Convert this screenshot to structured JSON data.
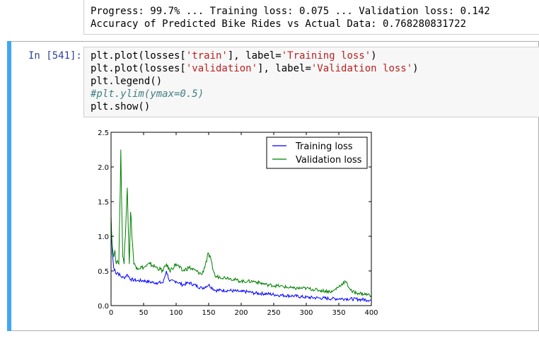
{
  "previous_output": {
    "line1": "Progress: 99.7% ... Training loss: 0.075 ... Validation loss: 0.142",
    "line2": "Accuracy of Predicted Bike Rides vs Actual Data: 0.768280831722"
  },
  "cell": {
    "prompt": "In [541]:",
    "code": {
      "l1_a": "plt.plot(losses[",
      "l1_s1": "'train'",
      "l1_b": "], label=",
      "l1_s2": "'Training loss'",
      "l1_c": ")",
      "l2_a": "plt.plot(losses[",
      "l2_s1": "'validation'",
      "l2_b": "], label=",
      "l2_s2": "'Validation loss'",
      "l2_c": ")",
      "l3": "plt.legend()",
      "l4": "#plt.ylim(ymax=0.5)",
      "l5": "plt.show()"
    }
  },
  "colors": {
    "accent": "#42a5f5",
    "training": "#0000ff",
    "validation": "#008000"
  },
  "chart_data": {
    "type": "line",
    "title": "",
    "xlabel": "",
    "ylabel": "",
    "xlim": [
      0,
      400
    ],
    "ylim": [
      0.0,
      2.5
    ],
    "xticks": [
      "0",
      "50",
      "100",
      "150",
      "200",
      "250",
      "300",
      "350",
      "400"
    ],
    "yticks": [
      "0.0",
      "0.5",
      "1.0",
      "1.5",
      "2.0",
      "2.5"
    ],
    "legend_placement": "top-right",
    "grid": false,
    "series": [
      {
        "name": "Training loss",
        "x": [
          0,
          2,
          4,
          6,
          8,
          10,
          15,
          20,
          25,
          30,
          35,
          40,
          50,
          60,
          70,
          80,
          85,
          90,
          100,
          110,
          120,
          140,
          150,
          160,
          180,
          200,
          210,
          220,
          240,
          260,
          280,
          300,
          320,
          340,
          360,
          380,
          400
        ],
        "values": [
          1.2,
          0.75,
          0.55,
          0.52,
          0.45,
          0.48,
          0.42,
          0.4,
          0.45,
          0.38,
          0.37,
          0.36,
          0.36,
          0.34,
          0.33,
          0.33,
          0.5,
          0.35,
          0.35,
          0.3,
          0.33,
          0.25,
          0.3,
          0.22,
          0.22,
          0.2,
          0.2,
          0.18,
          0.17,
          0.15,
          0.14,
          0.12,
          0.11,
          0.1,
          0.1,
          0.09,
          0.08
        ]
      },
      {
        "name": "Validation loss",
        "x": [
          0,
          2,
          4,
          6,
          8,
          10,
          12,
          15,
          18,
          20,
          25,
          28,
          30,
          35,
          40,
          50,
          60,
          70,
          80,
          85,
          90,
          100,
          110,
          120,
          140,
          150,
          160,
          180,
          200,
          210,
          220,
          240,
          260,
          280,
          300,
          320,
          340,
          360,
          370,
          380,
          400
        ],
        "values": [
          1.3,
          0.85,
          0.7,
          0.8,
          0.6,
          0.65,
          0.6,
          2.25,
          0.7,
          0.6,
          1.7,
          0.6,
          1.35,
          0.6,
          0.55,
          0.55,
          0.6,
          0.55,
          0.5,
          0.6,
          0.5,
          0.6,
          0.5,
          0.55,
          0.45,
          0.75,
          0.42,
          0.4,
          0.35,
          0.35,
          0.35,
          0.3,
          0.28,
          0.25,
          0.25,
          0.22,
          0.2,
          0.35,
          0.2,
          0.18,
          0.15
        ]
      }
    ]
  }
}
